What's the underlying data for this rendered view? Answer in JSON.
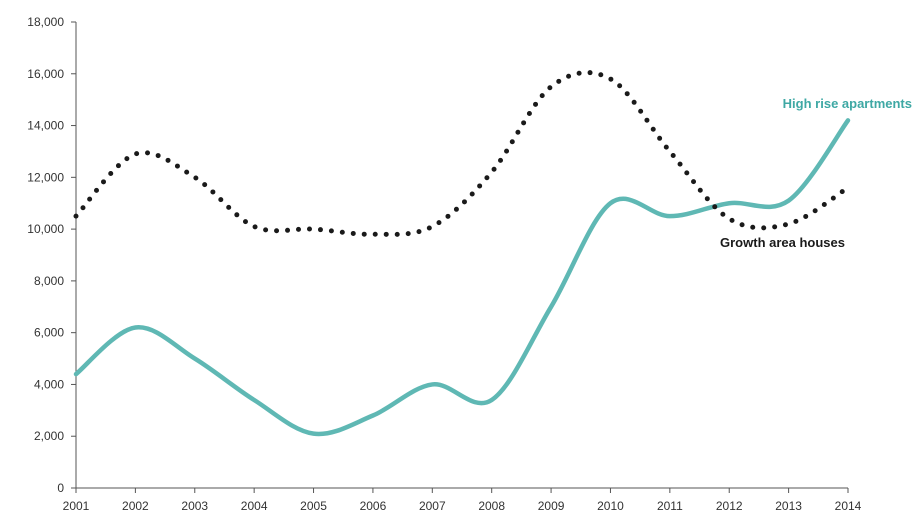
{
  "chart_data": {
    "type": "line",
    "title": "",
    "xlabel": "",
    "ylabel": "",
    "x": [
      "2001",
      "2002",
      "2003",
      "2004",
      "2005",
      "2006",
      "2007",
      "2008",
      "2009",
      "2010",
      "2011",
      "2012",
      "2013",
      "2014"
    ],
    "ylim": [
      0,
      18000
    ],
    "y_ticks": [
      "0",
      "2,000",
      "4,000",
      "6,000",
      "8,000",
      "10,000",
      "12,000",
      "14,000",
      "16,000",
      "18,000"
    ],
    "grid": false,
    "legend": "inline labels",
    "series": [
      {
        "name": "High rise apartments",
        "color": "#5fb8b4",
        "style": "solid",
        "values": [
          4400,
          6200,
          5000,
          3400,
          2100,
          2800,
          4000,
          3400,
          7000,
          11000,
          10500,
          11000,
          11100,
          14200
        ]
      },
      {
        "name": "Growth area houses",
        "color": "#1a1a1a",
        "style": "dotted",
        "values": [
          10500,
          12900,
          12000,
          10100,
          10000,
          9800,
          10100,
          12200,
          15500,
          15800,
          13000,
          10400,
          10200,
          11600
        ]
      }
    ]
  }
}
